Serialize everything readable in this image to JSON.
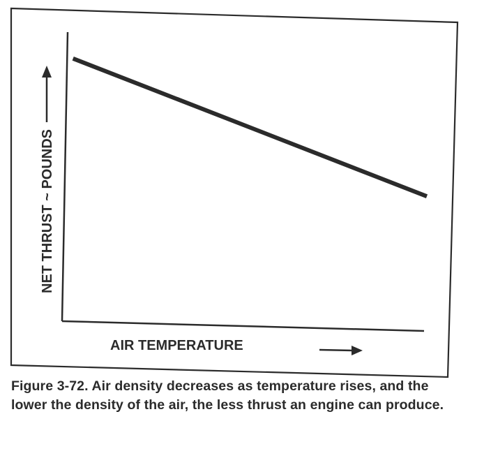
{
  "chart_data": {
    "type": "line",
    "title": "",
    "xlabel": "AIR TEMPERATURE",
    "ylabel": "NET THRUST ~ POUNDS",
    "x_ticks": [],
    "y_ticks": [],
    "grid": false,
    "legend": "none",
    "series": [
      {
        "x": [
          0.03,
          1.0
        ],
        "y": [
          0.91,
          0.44
        ]
      }
    ],
    "xlim": [
      0,
      1
    ],
    "ylim": [
      0,
      1
    ],
    "line_color": "#2b2b2b"
  },
  "caption": "Figure 3-72. Air density decreases as temperature rises, and the lower the density of the air, the less thrust an engine can produce."
}
